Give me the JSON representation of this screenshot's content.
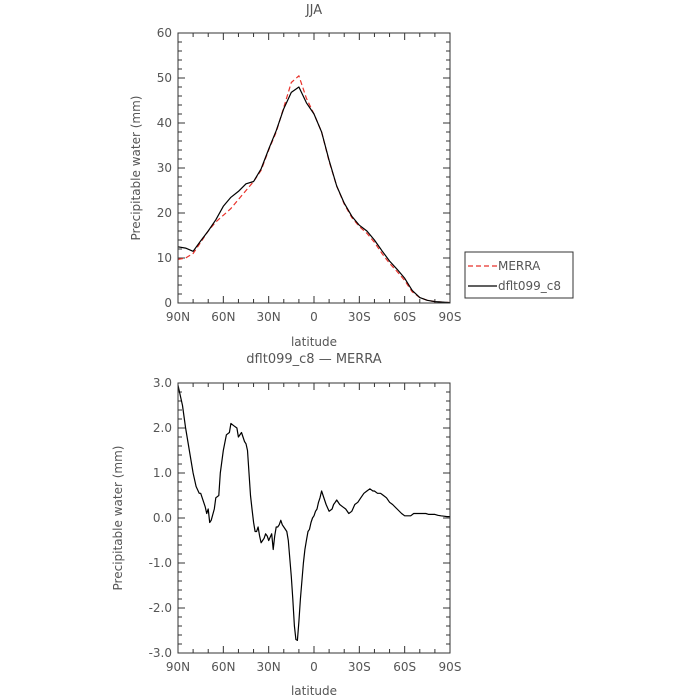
{
  "chart_data": [
    {
      "type": "line",
      "title": "JJA",
      "xlabel": "latitude",
      "ylabel": "Precipitable water (mm)",
      "xlim": [
        90,
        -90
      ],
      "ylim": [
        0,
        60
      ],
      "x_ticks": [
        90,
        60,
        30,
        0,
        -30,
        -60,
        -90
      ],
      "x_tick_labels": [
        "90N",
        "60N",
        "30N",
        "0",
        "30S",
        "60S",
        "90S"
      ],
      "y_ticks": [
        0,
        10,
        20,
        30,
        40,
        50,
        60
      ],
      "y_tick_labels": [
        "0",
        "10",
        "20",
        "30",
        "40",
        "50",
        "60"
      ],
      "legend": "right, outside plot",
      "series": [
        {
          "name": "MERRA",
          "color": "#e8322b",
          "dash": "dashed",
          "x": [
            90,
            85,
            80,
            75,
            70,
            65,
            60,
            55,
            50,
            45,
            40,
            35,
            30,
            25,
            20,
            15,
            10,
            5,
            0,
            -5,
            -10,
            -15,
            -20,
            -25,
            -30,
            -35,
            -40,
            -45,
            -50,
            -55,
            -60,
            -65,
            -70,
            -75,
            -80,
            -85,
            -90
          ],
          "y": [
            9.7,
            10.0,
            11.0,
            13.5,
            16.0,
            18.0,
            19.5,
            21.0,
            23.0,
            25.0,
            27.0,
            29.5,
            34.0,
            38.0,
            43.5,
            49.0,
            50.5,
            45.5,
            42.0,
            38.0,
            31.5,
            26.0,
            22.0,
            19.0,
            17.0,
            15.5,
            13.5,
            11.0,
            8.8,
            7.0,
            5.0,
            2.5,
            1.2,
            0.6,
            0.3,
            0.2,
            0.1
          ]
        },
        {
          "name": "dflt099_c8",
          "color": "#000000",
          "dash": "solid",
          "x": [
            90,
            85,
            80,
            75,
            70,
            65,
            60,
            55,
            50,
            45,
            40,
            35,
            30,
            25,
            20,
            15,
            10,
            5,
            0,
            -5,
            -10,
            -15,
            -20,
            -25,
            -30,
            -35,
            -40,
            -45,
            -50,
            -55,
            -60,
            -65,
            -70,
            -75,
            -80,
            -85,
            -90
          ],
          "y": [
            12.5,
            12.2,
            11.5,
            13.8,
            16.0,
            18.5,
            21.5,
            23.5,
            24.8,
            26.5,
            27.0,
            29.8,
            34.2,
            38.3,
            43.2,
            46.8,
            48.0,
            44.5,
            42.0,
            38.0,
            31.7,
            26.0,
            22.2,
            19.3,
            17.3,
            16.0,
            14.0,
            11.6,
            9.3,
            7.5,
            5.5,
            2.8,
            1.2,
            0.6,
            0.3,
            0.2,
            0.1
          ]
        }
      ]
    },
    {
      "type": "line",
      "title": "dflt099_c8 — MERRA",
      "xlabel": "latitude",
      "ylabel": "Precipitable water (mm)",
      "xlim": [
        90,
        -90
      ],
      "ylim": [
        -3.0,
        3.0
      ],
      "x_ticks": [
        90,
        60,
        30,
        0,
        -30,
        -60,
        -90
      ],
      "x_tick_labels": [
        "90N",
        "60N",
        "30N",
        "0",
        "30S",
        "60S",
        "90S"
      ],
      "y_ticks": [
        -3.0,
        -2.0,
        -1.0,
        0.0,
        1.0,
        2.0,
        3.0
      ],
      "y_tick_labels": [
        "-3.0",
        "-2.0",
        "-1.0",
        "0.0",
        "1.0",
        "2.0",
        "3.0"
      ],
      "series": [
        {
          "color": "#000000",
          "dash": "solid",
          "x": [
            90,
            87,
            85,
            82,
            80,
            78,
            76,
            75,
            73,
            72,
            71,
            70,
            69,
            68,
            66,
            65,
            63,
            62,
            60,
            58,
            56,
            55,
            53,
            51,
            50,
            48,
            47,
            46,
            45,
            44,
            43,
            42,
            41,
            40,
            39,
            38,
            37,
            36,
            35,
            34,
            33,
            32,
            31,
            30,
            28,
            27,
            26,
            25,
            24,
            23,
            22,
            21,
            20,
            18,
            17,
            16,
            15,
            14,
            13,
            12,
            11,
            10,
            9,
            8,
            7,
            6,
            5,
            4,
            3,
            2,
            1,
            0,
            -1,
            -2,
            -3,
            -4,
            -5,
            -6,
            -8,
            -10,
            -12,
            -13,
            -14,
            -15,
            -17,
            -19,
            -21,
            -23,
            -25,
            -27,
            -29,
            -31,
            -33,
            -35,
            -37,
            -39,
            -40,
            -42,
            -44,
            -46,
            -48,
            -50,
            -52,
            -55,
            -58,
            -60,
            -62,
            -64,
            -66,
            -68,
            -70,
            -72,
            -74,
            -76,
            -78,
            -80,
            -82,
            -84,
            -86,
            -88,
            -90
          ],
          "y": [
            2.95,
            2.5,
            2.0,
            1.4,
            1.0,
            0.7,
            0.55,
            0.55,
            0.35,
            0.25,
            0.1,
            0.2,
            -0.1,
            -0.05,
            0.2,
            0.45,
            0.5,
            1.0,
            1.5,
            1.85,
            1.9,
            2.1,
            2.05,
            2.0,
            1.8,
            1.9,
            1.8,
            1.7,
            1.65,
            1.5,
            1.0,
            0.5,
            0.2,
            -0.1,
            -0.3,
            -0.3,
            -0.2,
            -0.4,
            -0.55,
            -0.5,
            -0.45,
            -0.35,
            -0.4,
            -0.5,
            -0.35,
            -0.7,
            -0.4,
            -0.2,
            -0.2,
            -0.15,
            -0.05,
            -0.15,
            -0.2,
            -0.3,
            -0.5,
            -0.9,
            -1.3,
            -1.8,
            -2.4,
            -2.7,
            -2.72,
            -2.3,
            -1.8,
            -1.4,
            -1.0,
            -0.7,
            -0.5,
            -0.3,
            -0.25,
            -0.1,
            0.0,
            0.05,
            0.15,
            0.2,
            0.35,
            0.45,
            0.6,
            0.5,
            0.3,
            0.15,
            0.2,
            0.3,
            0.35,
            0.4,
            0.3,
            0.25,
            0.2,
            0.1,
            0.15,
            0.3,
            0.35,
            0.45,
            0.55,
            0.6,
            0.65,
            0.6,
            0.6,
            0.55,
            0.55,
            0.5,
            0.45,
            0.35,
            0.3,
            0.2,
            0.1,
            0.05,
            0.05,
            0.05,
            0.1,
            0.1,
            0.1,
            0.1,
            0.1,
            0.08,
            0.08,
            0.08,
            0.06,
            0.05,
            0.04,
            0.03,
            0.03
          ]
        }
      ]
    }
  ]
}
